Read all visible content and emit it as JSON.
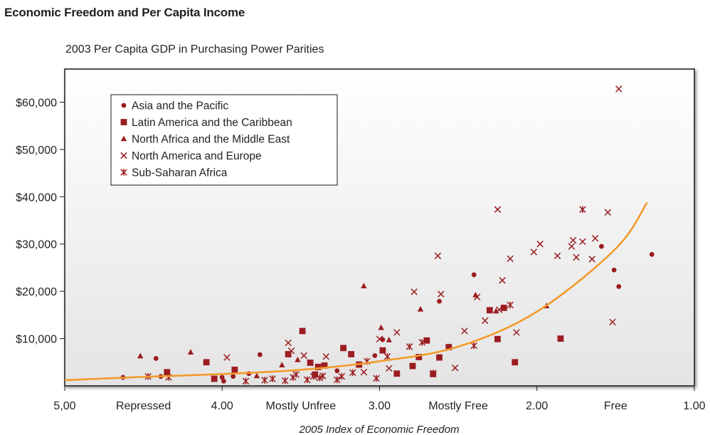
{
  "chart_data": {
    "type": "scatter",
    "title": "Economic Freedom and Per Capita Income",
    "subtitle": "2003 Per Capita GDP in Purchasing Power Parities",
    "xlabel": "2005 Index of Economic Freedom",
    "ylabel": "",
    "x_reversed": true,
    "xlim": [
      5.0,
      1.0
    ],
    "ylim": [
      0,
      67000
    ],
    "x_ticks": [
      {
        "value": 5.0,
        "label": "5,00"
      },
      {
        "value": 4.5,
        "label": "Repressed"
      },
      {
        "value": 4.0,
        "label": "4.00"
      },
      {
        "value": 3.5,
        "label": "Mostly Unfree"
      },
      {
        "value": 3.0,
        "label": "3.00"
      },
      {
        "value": 2.5,
        "label": "Mostly Free"
      },
      {
        "value": 2.0,
        "label": "2.00"
      },
      {
        "value": 1.5,
        "label": "Free"
      },
      {
        "value": 1.0,
        "label": "1.00"
      }
    ],
    "y_ticks": [
      {
        "value": 10000,
        "label": "$10,000"
      },
      {
        "value": 20000,
        "label": "$20,000"
      },
      {
        "value": 30000,
        "label": "$30,000"
      },
      {
        "value": 40000,
        "label": "$40,000"
      },
      {
        "value": 50000,
        "label": "$50,000"
      },
      {
        "value": 60000,
        "label": "$60,000"
      }
    ],
    "grid": false,
    "legend_position": "top-left",
    "marker_color": "#9b1c20",
    "trend_color": "#f39a2a",
    "trend_line": {
      "x": [
        5.0,
        4.5,
        4.0,
        3.5,
        3.0,
        2.5,
        2.0,
        1.5,
        1.3
      ],
      "y": [
        1200,
        1900,
        2500,
        3400,
        5200,
        8300,
        15700,
        29000,
        38800
      ]
    },
    "series": [
      {
        "name": "Asia and the Pacific",
        "marker": "circle",
        "points": [
          [
            4.63,
            1800
          ],
          [
            4.42,
            5800
          ],
          [
            4.39,
            2000
          ],
          [
            4.0,
            1800
          ],
          [
            3.99,
            1000
          ],
          [
            3.93,
            2000
          ],
          [
            3.83,
            2600
          ],
          [
            3.76,
            6600
          ],
          [
            3.27,
            3200
          ],
          [
            3.03,
            6400
          ],
          [
            2.98,
            9800
          ],
          [
            2.62,
            17900
          ],
          [
            2.4,
            23500
          ],
          [
            1.59,
            29500
          ],
          [
            1.48,
            21000
          ],
          [
            1.51,
            24500
          ],
          [
            1.27,
            27800
          ]
        ]
      },
      {
        "name": "Latin America and the Caribbean",
        "marker": "square",
        "points": [
          [
            4.35,
            2900
          ],
          [
            4.1,
            5000
          ],
          [
            4.05,
            1500
          ],
          [
            3.92,
            3400
          ],
          [
            3.58,
            6700
          ],
          [
            3.49,
            11600
          ],
          [
            3.44,
            4900
          ],
          [
            3.41,
            2400
          ],
          [
            3.39,
            4000
          ],
          [
            3.35,
            4300
          ],
          [
            3.23,
            8000
          ],
          [
            3.18,
            6700
          ],
          [
            3.13,
            4500
          ],
          [
            2.98,
            7500
          ],
          [
            2.89,
            2600
          ],
          [
            2.79,
            4200
          ],
          [
            2.7,
            9600
          ],
          [
            2.75,
            6100
          ],
          [
            2.66,
            2500
          ],
          [
            2.62,
            6000
          ],
          [
            2.56,
            8200
          ],
          [
            2.3,
            16000
          ],
          [
            2.21,
            16500
          ],
          [
            2.14,
            5000
          ],
          [
            1.85,
            10000
          ],
          [
            2.25,
            9900
          ]
        ]
      },
      {
        "name": "North Africa and the Middle East",
        "marker": "triangle",
        "points": [
          [
            4.52,
            6300
          ],
          [
            4.2,
            7100
          ],
          [
            3.78,
            2100
          ],
          [
            3.62,
            4400
          ],
          [
            3.52,
            5500
          ],
          [
            3.1,
            21100
          ],
          [
            2.99,
            12300
          ],
          [
            2.94,
            9700
          ],
          [
            2.74,
            16200
          ],
          [
            2.39,
            19200
          ],
          [
            2.26,
            15800
          ],
          [
            1.94,
            16900
          ]
        ]
      },
      {
        "name": "North America and Europe",
        "marker": "x",
        "points": [
          [
            3.97,
            6000
          ],
          [
            3.58,
            9100
          ],
          [
            3.56,
            7400
          ],
          [
            3.48,
            6400
          ],
          [
            3.34,
            6200
          ],
          [
            3.1,
            2900
          ],
          [
            3.0,
            9900
          ],
          [
            2.89,
            11300
          ],
          [
            2.94,
            3700
          ],
          [
            2.78,
            19900
          ],
          [
            2.61,
            19400
          ],
          [
            2.63,
            27500
          ],
          [
            2.52,
            3800
          ],
          [
            2.46,
            11600
          ],
          [
            2.38,
            18800
          ],
          [
            2.33,
            13800
          ],
          [
            2.25,
            37300
          ],
          [
            2.24,
            16100
          ],
          [
            2.22,
            22300
          ],
          [
            2.17,
            26900
          ],
          [
            2.13,
            11300
          ],
          [
            2.02,
            28300
          ],
          [
            1.98,
            30000
          ],
          [
            1.87,
            27500
          ],
          [
            1.78,
            29500
          ],
          [
            1.77,
            30800
          ],
          [
            1.75,
            27200
          ],
          [
            1.71,
            30500
          ],
          [
            1.65,
            26800
          ],
          [
            1.63,
            31200
          ],
          [
            1.55,
            36700
          ],
          [
            1.52,
            13500
          ],
          [
            1.48,
            62800
          ]
        ]
      },
      {
        "name": "Sub-Saharan Africa",
        "marker": "asterisk",
        "points": [
          [
            4.47,
            2000
          ],
          [
            4.34,
            1800
          ],
          [
            3.85,
            1000
          ],
          [
            3.73,
            1200
          ],
          [
            3.68,
            1500
          ],
          [
            3.6,
            1100
          ],
          [
            3.55,
            1800
          ],
          [
            3.53,
            2400
          ],
          [
            3.46,
            1300
          ],
          [
            3.42,
            2000
          ],
          [
            3.38,
            1700
          ],
          [
            3.36,
            2100
          ],
          [
            3.27,
            1300
          ],
          [
            3.24,
            2000
          ],
          [
            3.17,
            2800
          ],
          [
            3.08,
            5200
          ],
          [
            3.02,
            1600
          ],
          [
            2.95,
            6200
          ],
          [
            2.81,
            8300
          ],
          [
            2.73,
            9200
          ],
          [
            2.66,
            2700
          ],
          [
            2.4,
            8500
          ],
          [
            2.17,
            17100
          ],
          [
            1.71,
            37300
          ]
        ]
      }
    ]
  }
}
